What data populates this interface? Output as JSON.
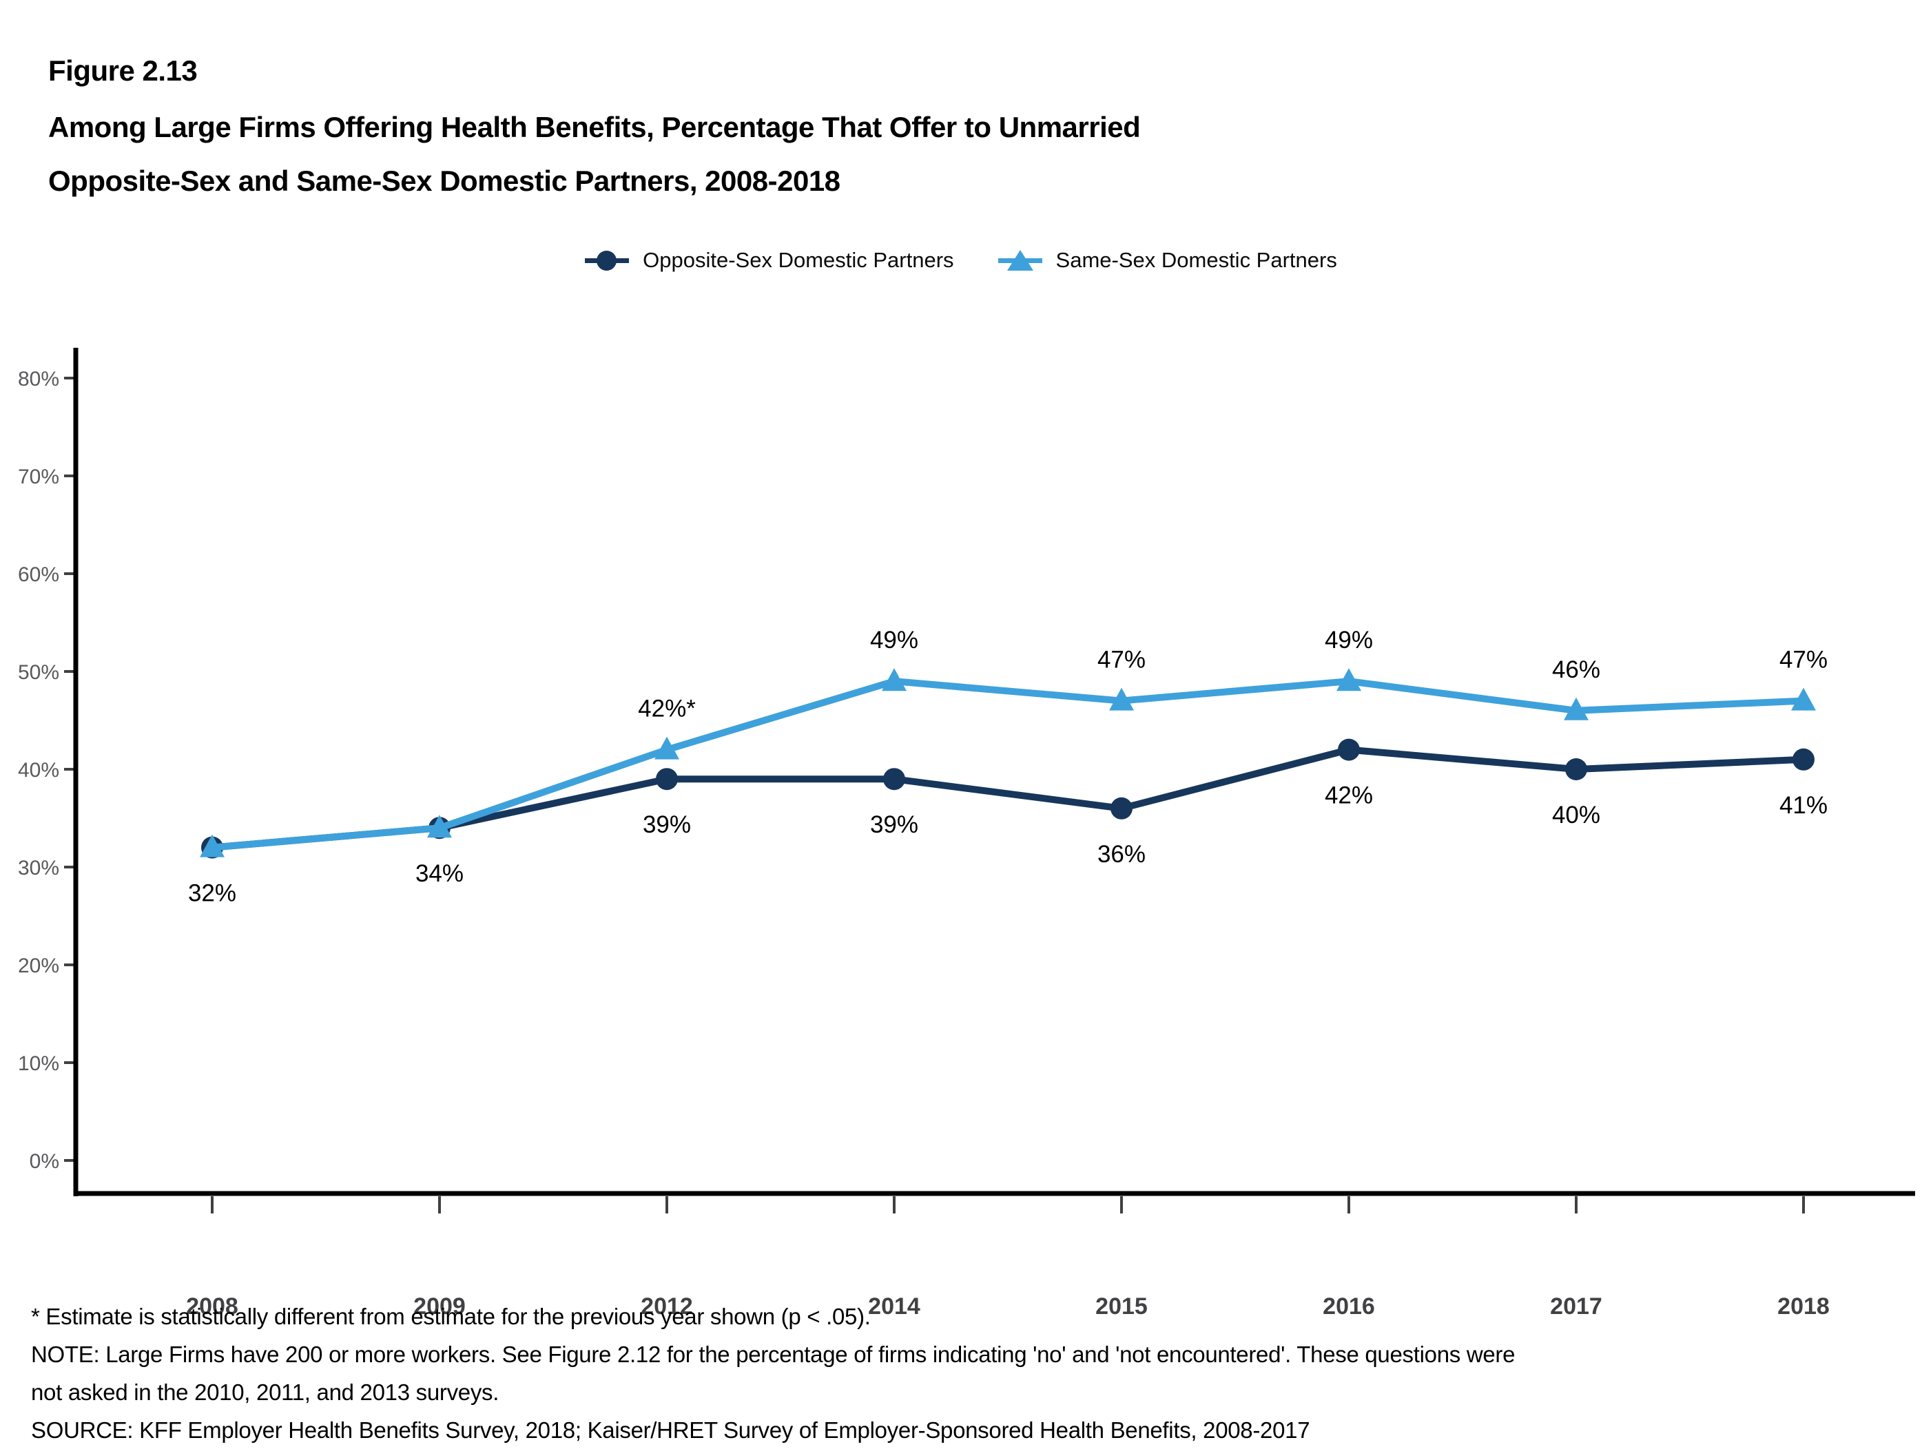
{
  "figure_label": "Figure 2.13",
  "title_line1": "Among Large Firms Offering Health Benefits, Percentage That Offer to Unmarried",
  "title_line2": "Opposite-Sex and Same-Sex Domestic Partners, 2008-2018",
  "colors": {
    "opposite_sex": "#17365B",
    "same_sex": "#3EA1DB",
    "axis": "#000000",
    "tick": "#404040",
    "y_tick_label": "#58595B",
    "x_tick_label": "#414042",
    "data_label": "#000000"
  },
  "legend": {
    "items": [
      {
        "label": "Opposite-Sex Domestic Partners",
        "marker": "circle",
        "color": "#17365B"
      },
      {
        "label": "Same-Sex Domestic Partners",
        "marker": "triangle",
        "color": "#3EA1DB"
      }
    ]
  },
  "chart_data": {
    "type": "line",
    "title": "Among Large Firms Offering Health Benefits, Percentage That Offer to Unmarried Opposite-Sex and Same-Sex Domestic Partners, 2008-2018",
    "categories": [
      "2008",
      "2009",
      "2012",
      "2014",
      "2015",
      "2016",
      "2017",
      "2018"
    ],
    "series": [
      {
        "name": "Opposite-Sex Domestic Partners",
        "marker": "circle",
        "color": "#17365B",
        "values": [
          32,
          34,
          39,
          39,
          36,
          42,
          40,
          41
        ],
        "point_labels": [
          "32%",
          "34%",
          "39%",
          "39%",
          "36%",
          "42%",
          "40%",
          "41%"
        ],
        "label_position": "below"
      },
      {
        "name": "Same-Sex Domestic Partners",
        "marker": "triangle",
        "color": "#3EA1DB",
        "values": [
          32,
          34,
          42,
          49,
          47,
          49,
          46,
          47
        ],
        "point_labels": [
          null,
          null,
          "42%*",
          "49%",
          "47%",
          "49%",
          "46%",
          "47%"
        ],
        "label_position": "above"
      }
    ],
    "xlabel": "",
    "ylabel": "",
    "ylim": [
      0,
      80
    ],
    "yticks": [
      "0%",
      "10%",
      "20%",
      "30%",
      "40%",
      "50%",
      "60%",
      "70%",
      "80%"
    ],
    "ytick_values": [
      0,
      10,
      20,
      30,
      40,
      50,
      60,
      70,
      80
    ],
    "grid": false,
    "legend_position": "top-center"
  },
  "footnotes": [
    "* Estimate is statistically different from estimate for the previous year shown (p < .05).",
    "NOTE: Large Firms have 200 or more workers. See Figure 2.12 for the percentage of firms indicating 'no' and 'not encountered'. These questions were",
    "not asked in the 2010, 2011, and 2013 surveys.",
    "SOURCE: KFF Employer Health Benefits Survey, 2018; Kaiser/HRET Survey of Employer-Sponsored Health Benefits, 2008-2017"
  ]
}
